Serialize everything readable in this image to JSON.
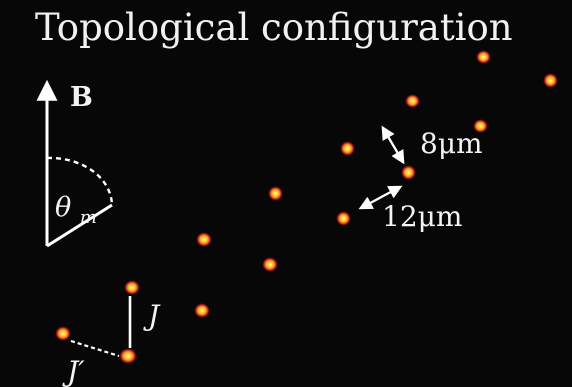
{
  "figure": {
    "title": "Topological configuration",
    "field_label": "B",
    "angle_label": "θ",
    "angle_subscript": "m",
    "distance_labels": {
      "short": "8μm",
      "long": "12μm"
    },
    "coupling_labels": {
      "J": "J",
      "J_prime": "J′"
    },
    "colors": {
      "background": "#070707",
      "text": "#f1f1f1",
      "atom_core": "#fff16a",
      "atom_hot": "#ff9b1f",
      "atom_edge": "#b81a1a"
    }
  }
}
